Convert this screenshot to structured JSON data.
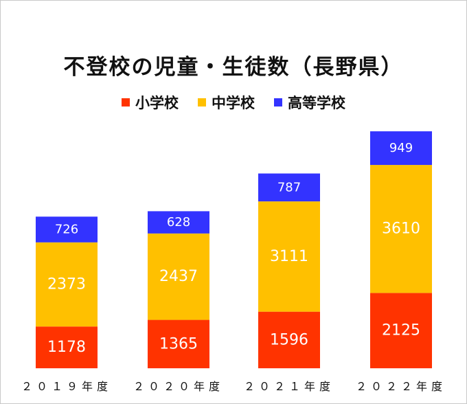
{
  "chart_data": {
    "type": "bar",
    "stacked": true,
    "title": "不登校の児童・生徒数（長野県）",
    "categories": [
      "２０１９年度",
      "２０２０年度",
      "２０２１年度",
      "２０２２年度"
    ],
    "series": [
      {
        "name": "小学校",
        "color": "#ff3300",
        "values": [
          1178,
          1365,
          1596,
          2125
        ]
      },
      {
        "name": "中学校",
        "color": "#ffc000",
        "values": [
          2373,
          2437,
          3111,
          3610
        ]
      },
      {
        "name": "高等学校",
        "color": "#3333ff",
        "values": [
          726,
          628,
          787,
          949
        ]
      }
    ],
    "legend_position": "top-center",
    "grid": false
  }
}
